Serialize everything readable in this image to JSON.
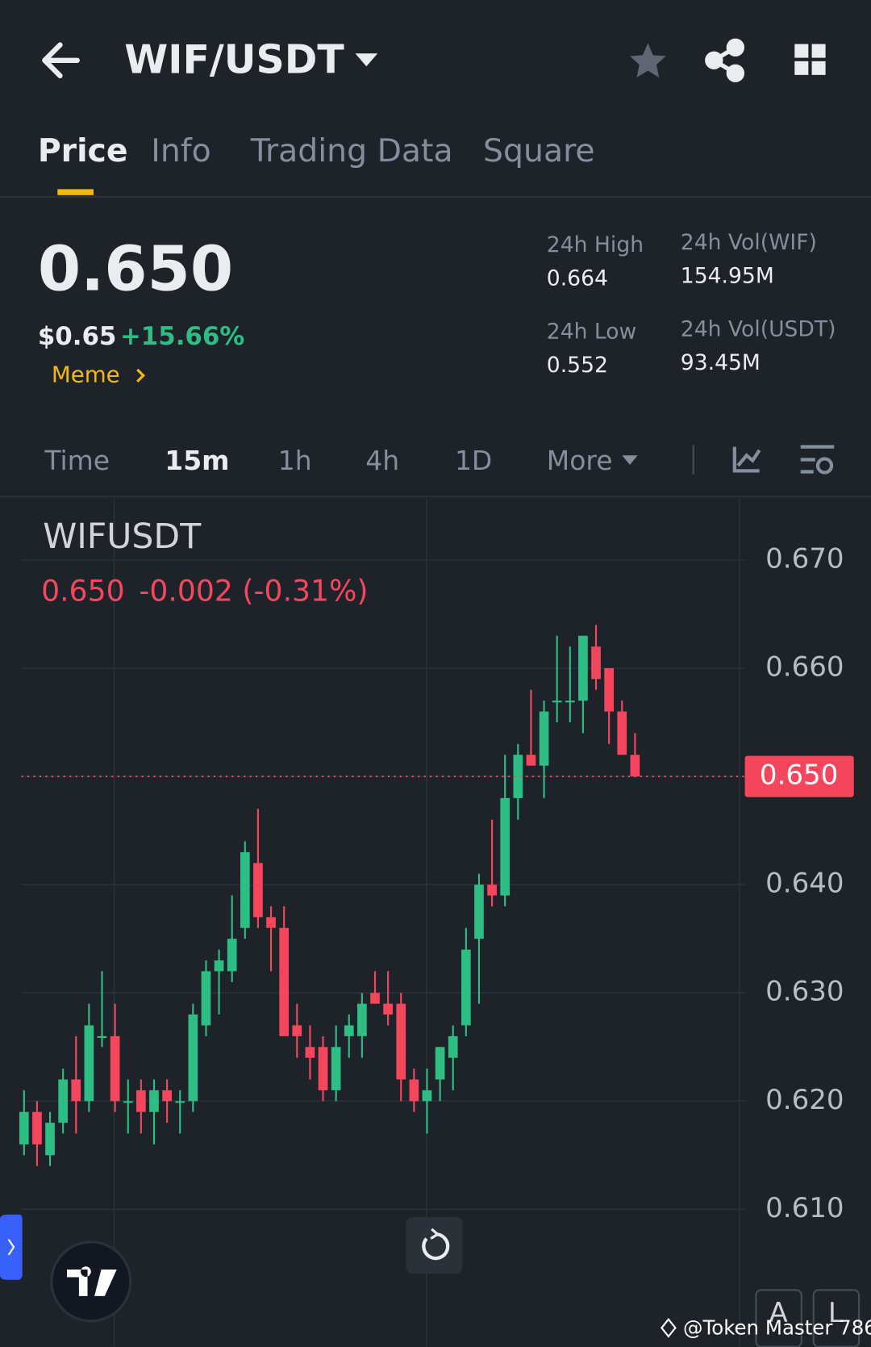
{
  "header": {
    "pair": "WIF/USDT"
  },
  "tabs": [
    "Price",
    "Info",
    "Trading Data",
    "Square"
  ],
  "summary": {
    "price": "0.650",
    "usd": "$0.65",
    "change": "+15.66%",
    "tag": "Meme"
  },
  "stats": [
    {
      "label": "24h High",
      "value": "0.664"
    },
    {
      "label": "24h Low",
      "value": "0.552"
    },
    {
      "label": "24h Vol(WIF)",
      "value": "154.95M"
    },
    {
      "label": "24h Vol(USDT)",
      "value": "93.45M"
    }
  ],
  "intervals": [
    "Time",
    "15m",
    "1h",
    "4h",
    "1D",
    "More"
  ],
  "chart_data": {
    "type": "candlestick",
    "symbol": "WIFUSDT",
    "last": "0.650",
    "last_change": "-0.002 (-0.31%)",
    "up_color": "#2ebd85",
    "down_color": "#f6465d",
    "open": [
      0.616,
      0.619,
      0.615,
      0.618,
      0.622,
      0.62,
      0.626,
      0.626,
      0.62,
      0.621,
      0.619,
      0.621,
      0.62,
      0.62,
      0.627,
      0.632,
      0.632,
      0.636,
      0.642,
      0.637,
      0.636,
      0.627,
      0.625,
      0.625,
      0.621,
      0.626,
      0.626,
      0.63,
      0.629,
      0.629,
      0.622,
      0.62,
      0.622,
      0.624,
      0.627,
      0.635,
      0.64,
      0.639,
      0.648,
      0.652,
      0.651,
      0.657,
      0.657,
      0.657,
      0.662,
      0.66,
      0.656,
      0.652
    ],
    "high": [
      0.621,
      0.62,
      0.619,
      0.623,
      0.626,
      0.629,
      0.632,
      0.629,
      0.622,
      0.622,
      0.622,
      0.622,
      0.621,
      0.629,
      0.633,
      0.634,
      0.639,
      0.644,
      0.647,
      0.638,
      0.638,
      0.629,
      0.627,
      0.626,
      0.627,
      0.628,
      0.63,
      0.632,
      0.632,
      0.63,
      0.623,
      0.623,
      0.625,
      0.627,
      0.636,
      0.641,
      0.646,
      0.652,
      0.653,
      0.658,
      0.657,
      0.663,
      0.662,
      0.663,
      0.664,
      0.66,
      0.657,
      0.654
    ],
    "low": [
      0.615,
      0.614,
      0.614,
      0.617,
      0.617,
      0.619,
      0.625,
      0.619,
      0.617,
      0.617,
      0.616,
      0.618,
      0.617,
      0.619,
      0.626,
      0.628,
      0.631,
      0.635,
      0.636,
      0.632,
      0.626,
      0.624,
      0.622,
      0.62,
      0.62,
      0.624,
      0.624,
      0.629,
      0.627,
      0.62,
      0.619,
      0.617,
      0.62,
      0.621,
      0.626,
      0.629,
      0.638,
      0.638,
      0.646,
      0.651,
      0.648,
      0.655,
      0.655,
      0.654,
      0.658,
      0.653,
      0.652,
      0.65
    ],
    "close": [
      0.619,
      0.616,
      0.618,
      0.622,
      0.62,
      0.627,
      0.626,
      0.62,
      0.62,
      0.619,
      0.621,
      0.62,
      0.62,
      0.628,
      0.632,
      0.633,
      0.635,
      0.643,
      0.637,
      0.636,
      0.626,
      0.626,
      0.624,
      0.621,
      0.625,
      0.627,
      0.629,
      0.629,
      0.628,
      0.622,
      0.62,
      0.621,
      0.625,
      0.626,
      0.634,
      0.64,
      0.639,
      0.648,
      0.652,
      0.651,
      0.656,
      0.657,
      0.657,
      0.663,
      0.659,
      0.656,
      0.652,
      0.65
    ],
    "ylim": [
      0.5973,
      0.6757
    ],
    "yticks": [
      {
        "value": 0.67,
        "label": "0.670"
      },
      {
        "value": 0.66,
        "label": "0.660"
      },
      {
        "value": 0.65,
        "label": "0.650"
      },
      {
        "value": 0.64,
        "label": "0.640"
      },
      {
        "value": 0.63,
        "label": "0.630"
      },
      {
        "value": 0.62,
        "label": "0.620"
      },
      {
        "value": 0.61,
        "label": "0.610"
      }
    ],
    "price_line": {
      "value": 0.65,
      "label": "0.650"
    },
    "grid": true
  },
  "buttons": [
    "A",
    "L"
  ],
  "watermark": "@Token Master 786"
}
